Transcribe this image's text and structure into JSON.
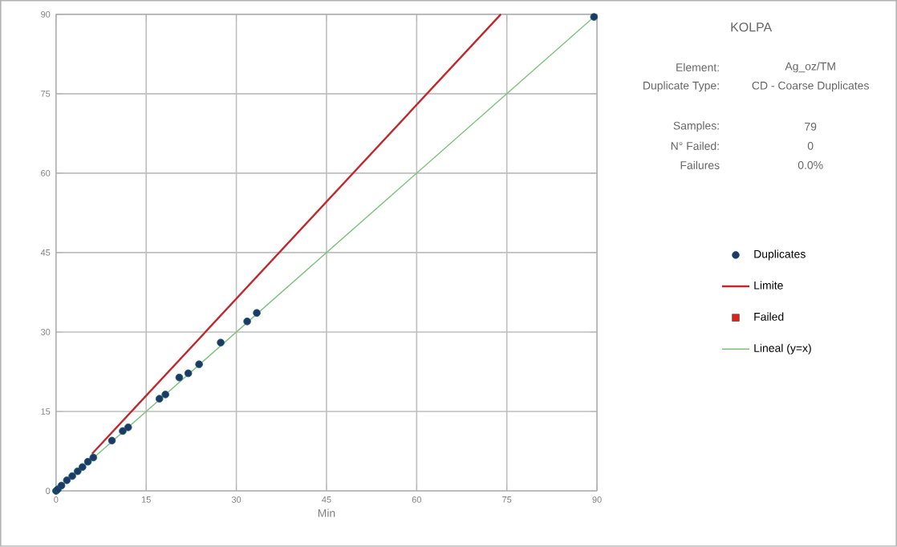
{
  "chart_data": {
    "type": "scatter",
    "title": "KOLPA",
    "xlabel": "Min",
    "xlim": [
      0,
      90
    ],
    "ylim": [
      0,
      90
    ],
    "xticks": [
      0,
      15,
      30,
      45,
      60,
      75,
      90
    ],
    "yticks": [
      0,
      15,
      30,
      45,
      60,
      75,
      90
    ],
    "grid": true,
    "legend": "right",
    "series": [
      {
        "name": "Duplicates",
        "marker": "circle",
        "color": "#1f3864",
        "x": [
          0,
          0.3,
          0.9,
          1.8,
          2.7,
          3.6,
          4.4,
          5.3,
          6.2,
          9.3,
          11.1,
          12,
          17.2,
          18.2,
          20.5,
          22,
          23.8,
          27.4,
          31.8,
          33.4,
          89.5
        ],
        "values": [
          0,
          0.3,
          1,
          2,
          2.8,
          3.7,
          4.5,
          5.5,
          6.3,
          9.5,
          11.3,
          12,
          17.4,
          18.2,
          21.4,
          22.2,
          23.9,
          28,
          32,
          33.6,
          89.5
        ]
      },
      {
        "name": "Limite",
        "type": "line",
        "marker": "none",
        "color": "#c0282d",
        "x": [
          6,
          74
        ],
        "values": [
          7,
          90
        ]
      },
      {
        "name": "Failed",
        "type": "scatter",
        "marker": "square",
        "color": "#e0201b"
      },
      {
        "name": "Lineal (y=x)",
        "type": "line",
        "marker": "none",
        "color": "#7cc07c",
        "x": [
          0,
          90
        ],
        "values": [
          0,
          90
        ]
      }
    ],
    "annotations": [
      "Element:",
      "Ag_oz/TM",
      "Duplicate Type:",
      "CD - Coarse Duplicates",
      "Samples:",
      "79",
      "N° Failed:",
      "0",
      "Failures",
      "0.0%"
    ]
  }
}
